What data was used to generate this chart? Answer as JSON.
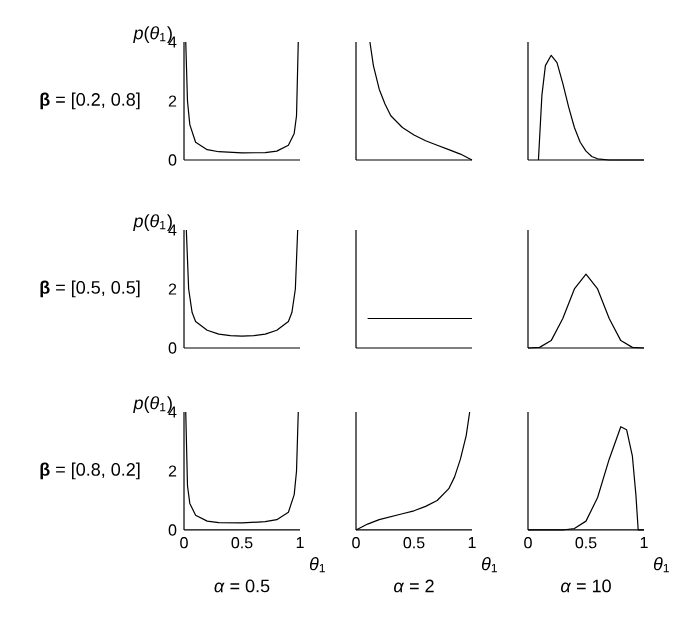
{
  "chart_data": [
    {
      "type": "line",
      "color": "#000000",
      "ylabel": "*p*(*θ*$_{1}$)",
      "annotations": [
        "**β** = [0.2, 0.8]"
      ],
      "xlim": [
        0,
        1
      ],
      "ylim": [
        0,
        4
      ],
      "yticks": [
        0,
        2,
        4
      ],
      "tick_labels": "y",
      "x": [
        0.015,
        0.03,
        0.05,
        0.1,
        0.2,
        0.3,
        0.5,
        0.7,
        0.8,
        0.9,
        0.95,
        0.97,
        0.985
      ],
      "values": [
        4,
        2,
        1.2,
        0.6,
        0.35,
        0.28,
        0.24,
        0.25,
        0.3,
        0.5,
        0.9,
        1.5,
        4
      ]
    },
    {
      "type": "line",
      "color": "#000000",
      "xlim": [
        0,
        1
      ],
      "ylim": [
        0,
        4
      ],
      "tick_labels": false,
      "x": [
        0.12,
        0.15,
        0.2,
        0.25,
        0.3,
        0.4,
        0.5,
        0.6,
        0.7,
        0.8,
        0.9,
        1
      ],
      "values": [
        4,
        3.2,
        2.4,
        1.9,
        1.5,
        1.1,
        0.85,
        0.65,
        0.5,
        0.35,
        0.2,
        0
      ]
    },
    {
      "type": "line",
      "color": "#000000",
      "xlim": [
        0,
        1
      ],
      "ylim": [
        0,
        4
      ],
      "tick_labels": false,
      "x": [
        0.09,
        0.12,
        0.15,
        0.2,
        0.25,
        0.3,
        0.35,
        0.4,
        0.45,
        0.5,
        0.55,
        0.6,
        0.7,
        1
      ],
      "values": [
        0,
        2.2,
        3.2,
        3.55,
        3.3,
        2.6,
        1.8,
        1.1,
        0.6,
        0.3,
        0.12,
        0.04,
        0,
        0
      ]
    },
    {
      "type": "line",
      "color": "#000000",
      "ylabel": "*p*(*θ*$_{1}$)",
      "annotations": [
        "**β** = [0.5, 0.5]"
      ],
      "xlim": [
        0,
        1
      ],
      "ylim": [
        0,
        4
      ],
      "yticks": [
        0,
        2,
        4
      ],
      "tick_labels": "y",
      "x": [
        0.02,
        0.04,
        0.07,
        0.1,
        0.2,
        0.3,
        0.4,
        0.5,
        0.6,
        0.7,
        0.8,
        0.9,
        0.93,
        0.96,
        0.98
      ],
      "values": [
        4,
        2,
        1.2,
        0.9,
        0.6,
        0.47,
        0.42,
        0.4,
        0.42,
        0.47,
        0.6,
        0.9,
        1.2,
        2,
        4
      ]
    },
    {
      "type": "line",
      "color": "#000000",
      "xlim": [
        0,
        1
      ],
      "ylim": [
        0,
        4
      ],
      "tick_labels": false,
      "x": [
        0.1,
        1
      ],
      "values": [
        1,
        1
      ]
    },
    {
      "type": "line",
      "color": "#000000",
      "xlim": [
        0,
        1
      ],
      "ylim": [
        0,
        4
      ],
      "tick_labels": false,
      "x": [
        0,
        0.1,
        0.2,
        0.3,
        0.4,
        0.5,
        0.6,
        0.7,
        0.8,
        0.9,
        1
      ],
      "values": [
        0,
        0.02,
        0.25,
        1.0,
        2.0,
        2.5,
        2.0,
        1.0,
        0.25,
        0.02,
        0
      ]
    },
    {
      "type": "line",
      "color": "#000000",
      "ylabel": "*p*(*θ*$_{1}$)",
      "xlabel": "*θ*$_{1}$",
      "annotations": [
        "**β** = [0.8, 0.2]",
        "*α* = 0.5"
      ],
      "xlim": [
        0,
        1
      ],
      "ylim": [
        0,
        4
      ],
      "xticks": [
        0,
        0.5,
        1
      ],
      "yticks": [
        0,
        2,
        4
      ],
      "x": [
        0.015,
        0.03,
        0.05,
        0.1,
        0.2,
        0.3,
        0.5,
        0.7,
        0.8,
        0.9,
        0.95,
        0.97,
        0.985
      ],
      "values": [
        4,
        1.5,
        0.9,
        0.5,
        0.3,
        0.25,
        0.24,
        0.28,
        0.35,
        0.6,
        1.2,
        2,
        4
      ]
    },
    {
      "type": "line",
      "color": "#000000",
      "xlabel": "*θ*$_{1}$",
      "annotations": [
        "*α* = 2"
      ],
      "xlim": [
        0,
        1
      ],
      "ylim": [
        0,
        4
      ],
      "xticks": [
        0,
        0.5,
        1
      ],
      "tick_labels": "x",
      "x": [
        0,
        0.1,
        0.2,
        0.3,
        0.4,
        0.5,
        0.6,
        0.7,
        0.8,
        0.85,
        0.9,
        0.95,
        0.98
      ],
      "values": [
        0,
        0.2,
        0.35,
        0.45,
        0.55,
        0.65,
        0.8,
        1.0,
        1.4,
        1.8,
        2.4,
        3.2,
        4
      ]
    },
    {
      "type": "line",
      "color": "#000000",
      "xlabel": "*θ*$_{1}$",
      "annotations": [
        "*α* = 10"
      ],
      "xlim": [
        0,
        1
      ],
      "ylim": [
        0,
        4
      ],
      "xticks": [
        0,
        0.5,
        1
      ],
      "tick_labels": "x",
      "x": [
        0,
        0.3,
        0.4,
        0.5,
        0.6,
        0.7,
        0.8,
        0.85,
        0.9,
        0.93,
        0.95,
        1
      ],
      "values": [
        0,
        0,
        0.05,
        0.3,
        1.1,
        2.4,
        3.5,
        3.4,
        2.5,
        1.2,
        0,
        0
      ]
    }
  ]
}
